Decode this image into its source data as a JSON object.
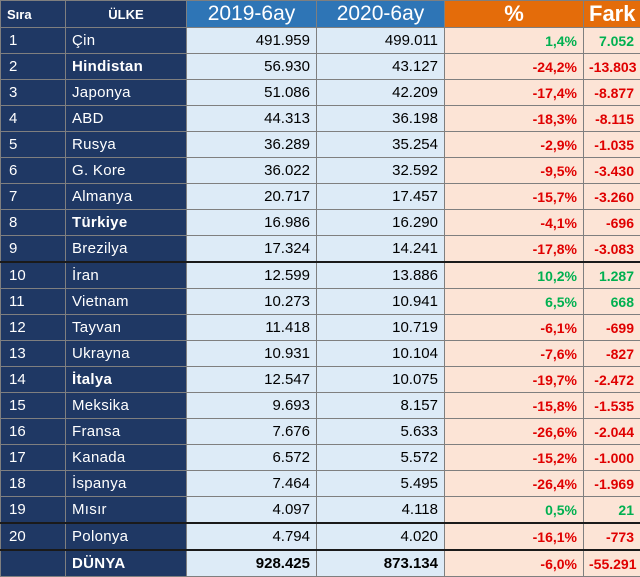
{
  "headers": {
    "rank": "Sıra",
    "country": "ÜLKE",
    "y2019": "2019-6ay",
    "y2020": "2020-6ay",
    "pct": "%",
    "diff": "Fark"
  },
  "colors": {
    "navy": "#1f3864",
    "blue": "#2e75b6",
    "orange": "#e46c0a",
    "light_blue": "#ddebf7",
    "peach": "#fce4d6",
    "negative": "#e00000",
    "positive": "#00b050"
  },
  "rows": [
    {
      "rank": "1",
      "country": "Çin",
      "v2019": "491.959",
      "v2020": "499.011",
      "pct": "1,4%",
      "diff": "7.052",
      "trend": "pos",
      "bold": false
    },
    {
      "rank": "2",
      "country": "Hindistan",
      "v2019": "56.930",
      "v2020": "43.127",
      "pct": "-24,2%",
      "diff": "-13.803",
      "trend": "neg",
      "bold": true
    },
    {
      "rank": "3",
      "country": "Japonya",
      "v2019": "51.086",
      "v2020": "42.209",
      "pct": "-17,4%",
      "diff": "-8.877",
      "trend": "neg",
      "bold": false
    },
    {
      "rank": "4",
      "country": "ABD",
      "v2019": "44.313",
      "v2020": "36.198",
      "pct": "-18,3%",
      "diff": "-8.115",
      "trend": "neg",
      "bold": false
    },
    {
      "rank": "5",
      "country": "Rusya",
      "v2019": "36.289",
      "v2020": "35.254",
      "pct": "-2,9%",
      "diff": "-1.035",
      "trend": "neg",
      "bold": false
    },
    {
      "rank": "6",
      "country": "G. Kore",
      "v2019": "36.022",
      "v2020": "32.592",
      "pct": "-9,5%",
      "diff": "-3.430",
      "trend": "neg",
      "bold": false
    },
    {
      "rank": "7",
      "country": "Almanya",
      "v2019": "20.717",
      "v2020": "17.457",
      "pct": "-15,7%",
      "diff": "-3.260",
      "trend": "neg",
      "bold": false
    },
    {
      "rank": "8",
      "country": "Türkiye",
      "v2019": "16.986",
      "v2020": "16.290",
      "pct": "-4,1%",
      "diff": "-696",
      "trend": "neg",
      "bold": true
    },
    {
      "rank": "9",
      "country": "Brezilya",
      "v2019": "17.324",
      "v2020": "14.241",
      "pct": "-17,8%",
      "diff": "-3.083",
      "trend": "neg",
      "bold": false
    },
    {
      "rank": "10",
      "country": "İran",
      "v2019": "12.599",
      "v2020": "13.886",
      "pct": "10,2%",
      "diff": "1.287",
      "trend": "pos",
      "bold": false
    },
    {
      "rank": "11",
      "country": "Vietnam",
      "v2019": "10.273",
      "v2020": "10.941",
      "pct": "6,5%",
      "diff": "668",
      "trend": "pos",
      "bold": false
    },
    {
      "rank": "12",
      "country": "Tayvan",
      "v2019": "11.418",
      "v2020": "10.719",
      "pct": "-6,1%",
      "diff": "-699",
      "trend": "neg",
      "bold": false
    },
    {
      "rank": "13",
      "country": "Ukrayna",
      "v2019": "10.931",
      "v2020": "10.104",
      "pct": "-7,6%",
      "diff": "-827",
      "trend": "neg",
      "bold": false
    },
    {
      "rank": "14",
      "country": "İtalya",
      "v2019": "12.547",
      "v2020": "10.075",
      "pct": "-19,7%",
      "diff": "-2.472",
      "trend": "neg",
      "bold": true
    },
    {
      "rank": "15",
      "country": "Meksika",
      "v2019": "9.693",
      "v2020": "8.157",
      "pct": "-15,8%",
      "diff": "-1.535",
      "trend": "neg",
      "bold": false
    },
    {
      "rank": "16",
      "country": "Fransa",
      "v2019": "7.676",
      "v2020": "5.633",
      "pct": "-26,6%",
      "diff": "-2.044",
      "trend": "neg",
      "bold": false
    },
    {
      "rank": "17",
      "country": "Kanada",
      "v2019": "6.572",
      "v2020": "5.572",
      "pct": "-15,2%",
      "diff": "-1.000",
      "trend": "neg",
      "bold": false
    },
    {
      "rank": "18",
      "country": "İspanya",
      "v2019": "7.464",
      "v2020": "5.495",
      "pct": "-26,4%",
      "diff": "-1.969",
      "trend": "neg",
      "bold": false
    },
    {
      "rank": "19",
      "country": "Mısır",
      "v2019": "4.097",
      "v2020": "4.118",
      "pct": "0,5%",
      "diff": "21",
      "trend": "pos",
      "bold": false
    },
    {
      "rank": "20",
      "country": "Polonya",
      "v2019": "4.794",
      "v2020": "4.020",
      "pct": "-16,1%",
      "diff": "-773",
      "trend": "neg",
      "bold": false
    }
  ],
  "total": {
    "rank": "",
    "country": "DÜNYA",
    "v2019": "928.425",
    "v2020": "873.134",
    "pct": "-6,0%",
    "diff": "-55.291",
    "trend": "neg"
  }
}
